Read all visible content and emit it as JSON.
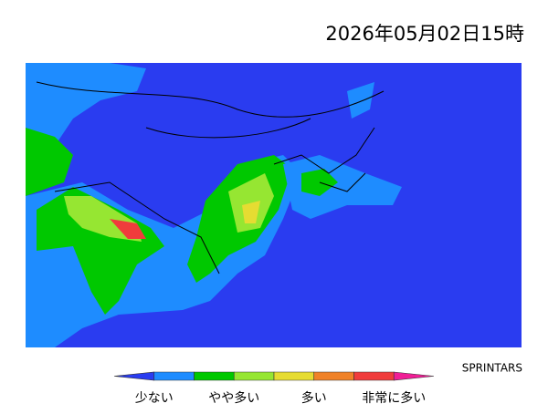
{
  "header": {
    "timestamp": "2026年05月02日15時"
  },
  "credit": "SPRINTARS",
  "legend": {
    "labels": [
      "少ない",
      "やや多い",
      "多い",
      "非常に多い"
    ],
    "colors": [
      "#2a3cf0",
      "#1e8cff",
      "#00c800",
      "#96e632",
      "#e6dc32",
      "#f08228",
      "#f03c3c",
      "#f01e96"
    ]
  }
}
